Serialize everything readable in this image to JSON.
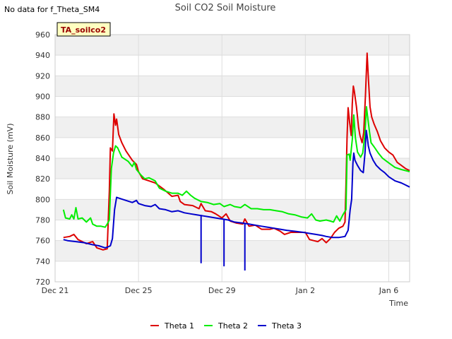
{
  "status_text": "No data for f_Theta_SM4",
  "chart_data": {
    "type": "line",
    "title": "Soil CO2 Soil Moisture",
    "xlabel": "Time",
    "ylabel": "Soil Moisture (mV)",
    "ylim": [
      720,
      960
    ],
    "xlim": [
      0,
      17
    ],
    "yticks": [
      720,
      740,
      760,
      780,
      800,
      820,
      840,
      860,
      880,
      900,
      920,
      940,
      960
    ],
    "xticks": [
      {
        "value": 0,
        "label": "Dec 21"
      },
      {
        "value": 4,
        "label": "Dec 25"
      },
      {
        "value": 8,
        "label": "Dec 29"
      },
      {
        "value": 12,
        "label": "Jan 2"
      },
      {
        "value": 16,
        "label": "Jan 6"
      }
    ],
    "grid": true,
    "annotation": "TA_soilco2",
    "legend_position": "bottom",
    "series": [
      {
        "name": "Theta 1",
        "color": "#dd0000",
        "points": [
          [
            0.4,
            763
          ],
          [
            0.7,
            764
          ],
          [
            0.9,
            766
          ],
          [
            1.1,
            761
          ],
          [
            1.5,
            757
          ],
          [
            1.8,
            759
          ],
          [
            2.0,
            753
          ],
          [
            2.3,
            751
          ],
          [
            2.5,
            752
          ],
          [
            2.6,
            808
          ],
          [
            2.65,
            850
          ],
          [
            2.75,
            847
          ],
          [
            2.82,
            883
          ],
          [
            2.9,
            872
          ],
          [
            2.95,
            878
          ],
          [
            3.05,
            863
          ],
          [
            3.2,
            855
          ],
          [
            3.4,
            847
          ],
          [
            3.7,
            838
          ],
          [
            3.9,
            834
          ],
          [
            4.0,
            827
          ],
          [
            4.2,
            820
          ],
          [
            4.5,
            818
          ],
          [
            4.8,
            816
          ],
          [
            5.2,
            810
          ],
          [
            5.6,
            803
          ],
          [
            5.9,
            804
          ],
          [
            6.0,
            798
          ],
          [
            6.2,
            795
          ],
          [
            6.6,
            794
          ],
          [
            6.9,
            791
          ],
          [
            7.0,
            796
          ],
          [
            7.2,
            789
          ],
          [
            7.5,
            788
          ],
          [
            7.7,
            786
          ],
          [
            8.0,
            782
          ],
          [
            8.2,
            786
          ],
          [
            8.4,
            779
          ],
          [
            8.7,
            777
          ],
          [
            9.0,
            776
          ],
          [
            9.1,
            781
          ],
          [
            9.3,
            774
          ],
          [
            9.6,
            775
          ],
          [
            9.9,
            771
          ],
          [
            10.3,
            771
          ],
          [
            10.5,
            772
          ],
          [
            10.8,
            769
          ],
          [
            11.0,
            766
          ],
          [
            11.3,
            768
          ],
          [
            11.7,
            768
          ],
          [
            12.0,
            768
          ],
          [
            12.2,
            761
          ],
          [
            12.4,
            760
          ],
          [
            12.6,
            759
          ],
          [
            12.8,
            762
          ],
          [
            13.0,
            758
          ],
          [
            13.2,
            762
          ],
          [
            13.4,
            768
          ],
          [
            13.6,
            772
          ],
          [
            13.8,
            774
          ],
          [
            13.9,
            778
          ],
          [
            13.95,
            815
          ],
          [
            14.0,
            860
          ],
          [
            14.05,
            889
          ],
          [
            14.12,
            875
          ],
          [
            14.2,
            862
          ],
          [
            14.25,
            893
          ],
          [
            14.3,
            910
          ],
          [
            14.35,
            905
          ],
          [
            14.45,
            890
          ],
          [
            14.55,
            870
          ],
          [
            14.62,
            862
          ],
          [
            14.72,
            855
          ],
          [
            14.8,
            865
          ],
          [
            14.88,
            900
          ],
          [
            14.96,
            942
          ],
          [
            15.03,
            915
          ],
          [
            15.1,
            890
          ],
          [
            15.18,
            880
          ],
          [
            15.3,
            873
          ],
          [
            15.45,
            866
          ],
          [
            15.6,
            857
          ],
          [
            15.8,
            850
          ],
          [
            16.0,
            846
          ],
          [
            16.2,
            843
          ],
          [
            16.4,
            836
          ],
          [
            16.6,
            833
          ],
          [
            16.8,
            830
          ],
          [
            17.0,
            828
          ]
        ]
      },
      {
        "name": "Theta 2",
        "color": "#00ee00",
        "points": [
          [
            0.4,
            790
          ],
          [
            0.5,
            782
          ],
          [
            0.7,
            781
          ],
          [
            0.8,
            785
          ],
          [
            0.9,
            781
          ],
          [
            1.0,
            792
          ],
          [
            1.1,
            781
          ],
          [
            1.3,
            782
          ],
          [
            1.5,
            778
          ],
          [
            1.7,
            782
          ],
          [
            1.8,
            776
          ],
          [
            2.0,
            774
          ],
          [
            2.2,
            774
          ],
          [
            2.4,
            773
          ],
          [
            2.5,
            776
          ],
          [
            2.6,
            780
          ],
          [
            2.7,
            830
          ],
          [
            2.8,
            845
          ],
          [
            2.9,
            852
          ],
          [
            3.0,
            850
          ],
          [
            3.2,
            841
          ],
          [
            3.5,
            837
          ],
          [
            3.7,
            832
          ],
          [
            3.8,
            836
          ],
          [
            3.9,
            829
          ],
          [
            4.1,
            824
          ],
          [
            4.3,
            820
          ],
          [
            4.5,
            821
          ],
          [
            4.8,
            818
          ],
          [
            5.0,
            811
          ],
          [
            5.3,
            808
          ],
          [
            5.6,
            806
          ],
          [
            5.9,
            806
          ],
          [
            6.1,
            804
          ],
          [
            6.3,
            808
          ],
          [
            6.5,
            804
          ],
          [
            6.7,
            801
          ],
          [
            7.0,
            798
          ],
          [
            7.3,
            797
          ],
          [
            7.6,
            795
          ],
          [
            7.9,
            796
          ],
          [
            8.1,
            793
          ],
          [
            8.4,
            795
          ],
          [
            8.6,
            793
          ],
          [
            8.9,
            792
          ],
          [
            9.1,
            795
          ],
          [
            9.4,
            791
          ],
          [
            9.7,
            791
          ],
          [
            10.0,
            790
          ],
          [
            10.3,
            790
          ],
          [
            10.6,
            789
          ],
          [
            10.9,
            788
          ],
          [
            11.2,
            786
          ],
          [
            11.5,
            785
          ],
          [
            11.8,
            783
          ],
          [
            12.1,
            782
          ],
          [
            12.3,
            786
          ],
          [
            12.5,
            780
          ],
          [
            12.7,
            779
          ],
          [
            13.0,
            780
          ],
          [
            13.2,
            779
          ],
          [
            13.35,
            778
          ],
          [
            13.5,
            784
          ],
          [
            13.65,
            779
          ],
          [
            13.8,
            785
          ],
          [
            13.95,
            790
          ],
          [
            14.0,
            843
          ],
          [
            14.1,
            844
          ],
          [
            14.15,
            838
          ],
          [
            14.25,
            858
          ],
          [
            14.32,
            882
          ],
          [
            14.4,
            860
          ],
          [
            14.5,
            846
          ],
          [
            14.65,
            841
          ],
          [
            14.75,
            845
          ],
          [
            14.85,
            862
          ],
          [
            14.93,
            890
          ],
          [
            15.0,
            878
          ],
          [
            15.08,
            865
          ],
          [
            15.15,
            855
          ],
          [
            15.3,
            851
          ],
          [
            15.5,
            845
          ],
          [
            15.7,
            840
          ],
          [
            15.9,
            837
          ],
          [
            16.1,
            834
          ],
          [
            16.3,
            831
          ],
          [
            16.6,
            829
          ],
          [
            16.8,
            828
          ],
          [
            17.0,
            827
          ]
        ]
      },
      {
        "name": "Theta 3",
        "color": "#0000cc",
        "points": [
          [
            0.4,
            761
          ],
          [
            0.6,
            760
          ],
          [
            1.0,
            759
          ],
          [
            1.4,
            758
          ],
          [
            1.8,
            756
          ],
          [
            2.1,
            755
          ],
          [
            2.4,
            753
          ],
          [
            2.55,
            754
          ],
          [
            2.65,
            755
          ],
          [
            2.75,
            762
          ],
          [
            2.85,
            790
          ],
          [
            2.95,
            802
          ],
          [
            3.1,
            801
          ],
          [
            3.4,
            799
          ],
          [
            3.7,
            797
          ],
          [
            3.9,
            799
          ],
          [
            4.0,
            796
          ],
          [
            4.3,
            794
          ],
          [
            4.6,
            793
          ],
          [
            4.8,
            795
          ],
          [
            5.0,
            791
          ],
          [
            5.3,
            790
          ],
          [
            5.6,
            788
          ],
          [
            5.9,
            789
          ],
          [
            6.2,
            787
          ],
          [
            6.5,
            786
          ],
          [
            6.8,
            785
          ],
          [
            7.1,
            784
          ],
          [
            7.4,
            783
          ],
          [
            7.7,
            782
          ],
          [
            8.0,
            781
          ],
          [
            8.3,
            780
          ],
          [
            8.6,
            778
          ],
          [
            9.0,
            777
          ],
          [
            9.3,
            776
          ],
          [
            9.6,
            775
          ],
          [
            9.9,
            774
          ],
          [
            10.2,
            773
          ],
          [
            10.5,
            772
          ],
          [
            10.8,
            771
          ],
          [
            11.1,
            770
          ],
          [
            11.5,
            769
          ],
          [
            11.9,
            768
          ],
          [
            12.2,
            767
          ],
          [
            12.5,
            766
          ],
          [
            12.8,
            765
          ],
          [
            13.0,
            764
          ],
          [
            13.3,
            763
          ],
          [
            13.6,
            763
          ],
          [
            13.9,
            764
          ],
          [
            14.05,
            770
          ],
          [
            14.15,
            790
          ],
          [
            14.22,
            800
          ],
          [
            14.28,
            835
          ],
          [
            14.32,
            845
          ],
          [
            14.38,
            838
          ],
          [
            14.5,
            833
          ],
          [
            14.65,
            828
          ],
          [
            14.78,
            826
          ],
          [
            14.86,
            845
          ],
          [
            14.92,
            867
          ],
          [
            14.97,
            860
          ],
          [
            15.02,
            852
          ],
          [
            15.1,
            845
          ],
          [
            15.25,
            838
          ],
          [
            15.4,
            833
          ],
          [
            15.6,
            829
          ],
          [
            15.8,
            826
          ],
          [
            16.0,
            822
          ],
          [
            16.3,
            818
          ],
          [
            16.6,
            816
          ],
          [
            16.8,
            814
          ],
          [
            17.0,
            812
          ]
        ],
        "spikes": [
          [
            7.0,
            738
          ],
          [
            8.1,
            735
          ],
          [
            9.1,
            731
          ]
        ]
      }
    ]
  }
}
